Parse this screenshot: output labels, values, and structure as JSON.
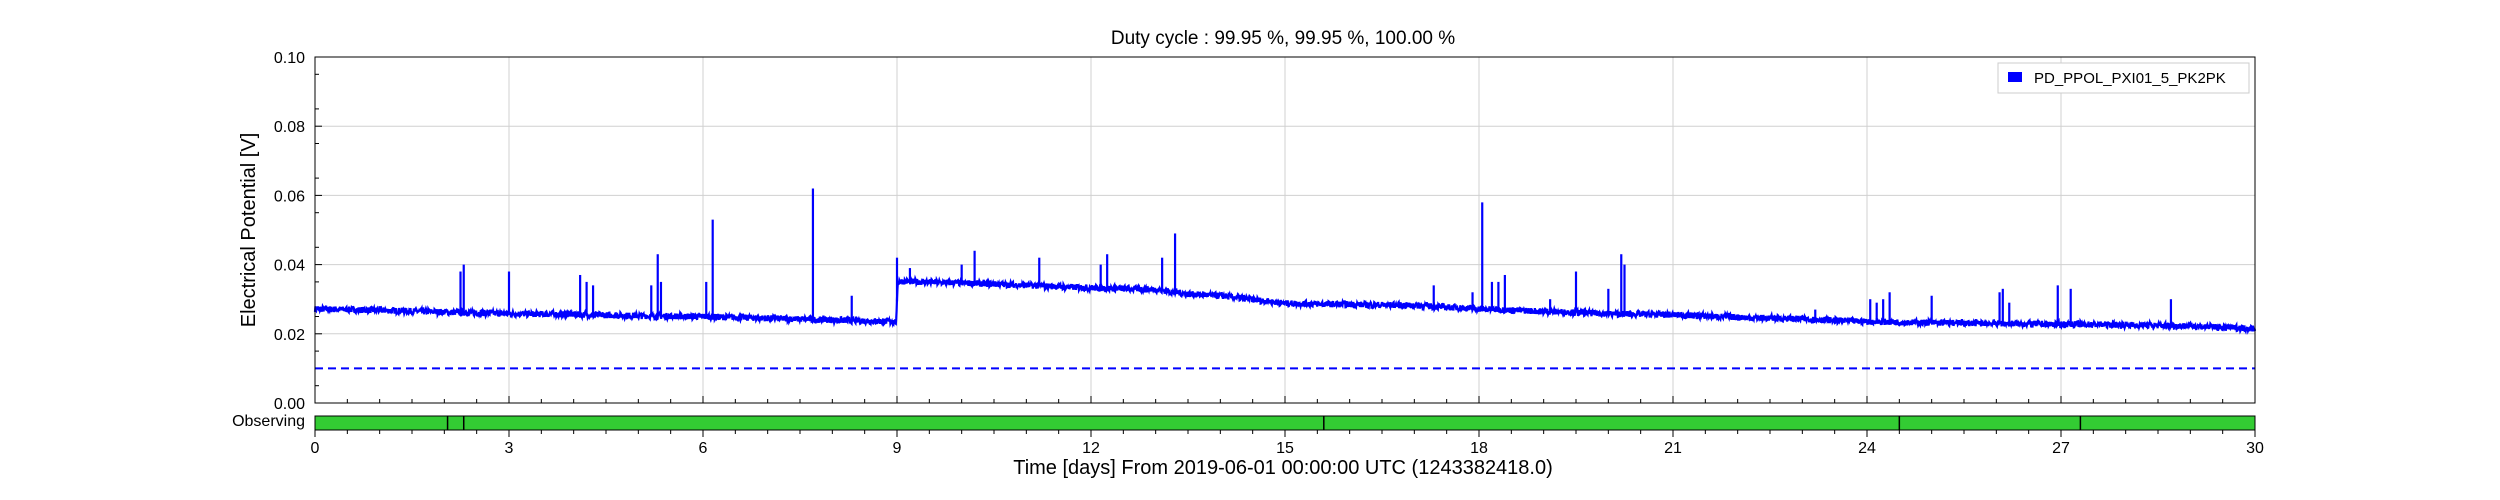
{
  "chart_data": {
    "type": "line",
    "title": "Duty cycle : 99.95 %, 99.95 %, 100.00 %",
    "xlabel": "Time [days] From 2019-06-01 00:00:00 UTC (1243382418.0)",
    "ylabel": "Electrical Potential [V]",
    "xlim": [
      0,
      30
    ],
    "ylim": [
      0,
      0.1
    ],
    "xticks": [
      "0",
      "3",
      "6",
      "9",
      "12",
      "15",
      "18",
      "21",
      "24",
      "27",
      "30"
    ],
    "yticks": [
      "0.00",
      "0.02",
      "0.04",
      "0.06",
      "0.08",
      "0.10"
    ],
    "grid": true,
    "legend_position": "top-right",
    "series": [
      {
        "name": "PD_PPOL_PXI01_5_PK2PK",
        "color": "#0000ff",
        "baseline": [
          [
            0,
            0.0272
          ],
          [
            1,
            0.0268
          ],
          [
            2,
            0.0263
          ],
          [
            3,
            0.0258
          ],
          [
            4,
            0.0256
          ],
          [
            5,
            0.0252
          ],
          [
            6,
            0.025
          ],
          [
            7,
            0.0245
          ],
          [
            8,
            0.024
          ],
          [
            8.99,
            0.0235
          ],
          [
            9.01,
            0.0352
          ],
          [
            10,
            0.0347
          ],
          [
            11,
            0.034
          ],
          [
            12,
            0.0333
          ],
          [
            13,
            0.0328
          ],
          [
            13.5,
            0.0315
          ],
          [
            14,
            0.031
          ],
          [
            15,
            0.0288
          ],
          [
            16,
            0.0285
          ],
          [
            17,
            0.0282
          ],
          [
            18,
            0.0272
          ],
          [
            19,
            0.0265
          ],
          [
            20,
            0.0258
          ],
          [
            21,
            0.0255
          ],
          [
            22,
            0.0248
          ],
          [
            23,
            0.0243
          ],
          [
            24,
            0.0235
          ],
          [
            25,
            0.0232
          ],
          [
            26,
            0.023
          ],
          [
            27,
            0.0228
          ],
          [
            28,
            0.0226
          ],
          [
            29,
            0.0223
          ],
          [
            30,
            0.0215
          ]
        ],
        "spikes": [
          [
            2.25,
            0.038
          ],
          [
            2.3,
            0.04
          ],
          [
            3.0,
            0.038
          ],
          [
            4.1,
            0.037
          ],
          [
            4.2,
            0.035
          ],
          [
            4.3,
            0.034
          ],
          [
            5.2,
            0.034
          ],
          [
            5.3,
            0.043
          ],
          [
            5.35,
            0.035
          ],
          [
            6.05,
            0.035
          ],
          [
            6.15,
            0.053
          ],
          [
            7.7,
            0.062
          ],
          [
            8.3,
            0.031
          ],
          [
            9.0,
            0.042
          ],
          [
            9.2,
            0.039
          ],
          [
            10.0,
            0.04
          ],
          [
            10.2,
            0.044
          ],
          [
            11.2,
            0.042
          ],
          [
            12.15,
            0.04
          ],
          [
            12.25,
            0.043
          ],
          [
            13.1,
            0.042
          ],
          [
            13.3,
            0.049
          ],
          [
            17.3,
            0.034
          ],
          [
            17.9,
            0.032
          ],
          [
            18.05,
            0.058
          ],
          [
            18.2,
            0.035
          ],
          [
            18.3,
            0.035
          ],
          [
            18.4,
            0.037
          ],
          [
            19.1,
            0.03
          ],
          [
            19.5,
            0.038
          ],
          [
            20.0,
            0.033
          ],
          [
            20.2,
            0.043
          ],
          [
            20.25,
            0.04
          ],
          [
            23.2,
            0.027
          ],
          [
            24.05,
            0.03
          ],
          [
            24.15,
            0.029
          ],
          [
            24.25,
            0.03
          ],
          [
            24.35,
            0.032
          ],
          [
            25.0,
            0.031
          ],
          [
            26.05,
            0.032
          ],
          [
            26.1,
            0.033
          ],
          [
            26.2,
            0.029
          ],
          [
            26.95,
            0.034
          ],
          [
            27.15,
            0.033
          ],
          [
            28.7,
            0.03
          ]
        ]
      }
    ],
    "threshold": {
      "value": 0.01,
      "style": "dashed",
      "color": "#0000ff"
    },
    "state_bar": {
      "label": "Observing",
      "color": "#33cc33",
      "gaps": [
        2.05,
        2.3,
        15.6,
        24.5,
        27.3
      ]
    }
  }
}
